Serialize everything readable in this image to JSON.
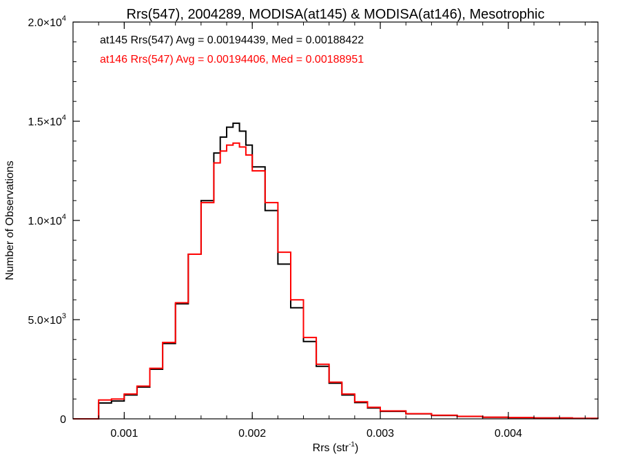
{
  "chart_data": {
    "type": "line",
    "title": "Rrs(547), 2004289, MODISA(at145) & MODISA(at146), Mesotrophic",
    "xlabel": "Rrs (str",
    "xlabel_sup": "-1",
    "xlabel_close": ")",
    "ylabel": "Number of Observations",
    "xlim": [
      0.0006,
      0.0047
    ],
    "ylim": [
      0,
      20000
    ],
    "step": true,
    "x_ticks": [
      {
        "value": 0.001,
        "label": "0.001"
      },
      {
        "value": 0.002,
        "label": "0.002"
      },
      {
        "value": 0.003,
        "label": "0.003"
      },
      {
        "value": 0.004,
        "label": "0.004"
      }
    ],
    "y_ticks": [
      {
        "value": 0,
        "label": "0",
        "sup": ""
      },
      {
        "value": 5000,
        "label": "5.0×10",
        "sup": "3"
      },
      {
        "value": 10000,
        "label": "1.0×10",
        "sup": "4"
      },
      {
        "value": 15000,
        "label": "1.5×10",
        "sup": "4"
      },
      {
        "value": 20000,
        "label": "2.0×10",
        "sup": "4"
      }
    ],
    "x_minor_step": 0.0002,
    "y_minor_step": 1000,
    "series": [
      {
        "name": "at145",
        "color": "#000000",
        "stats": "at145 Rrs(547) Avg = 0.00194439, Med = 0.00188422",
        "x": [
          0.0006,
          0.0007,
          0.00078,
          0.0008,
          0.0008,
          0.0009,
          0.001,
          0.0011,
          0.0012,
          0.0013,
          0.0014,
          0.0015,
          0.0016,
          0.0017,
          0.00175,
          0.0018,
          0.00185,
          0.0019,
          0.00195,
          0.002,
          0.0021,
          0.0022,
          0.0023,
          0.0024,
          0.0025,
          0.0026,
          0.0027,
          0.0028,
          0.0029,
          0.003,
          0.0032,
          0.0034,
          0.0036,
          0.0038,
          0.004,
          0.0042,
          0.0045,
          0.0047
        ],
        "y": [
          0,
          0,
          0,
          700,
          800,
          900,
          1200,
          1600,
          2500,
          3800,
          5800,
          8300,
          11000,
          13400,
          14200,
          14700,
          14900,
          14500,
          13800,
          12700,
          10500,
          7800,
          5600,
          3900,
          2650,
          1800,
          1200,
          820,
          550,
          380,
          250,
          170,
          120,
          80,
          60,
          40,
          20,
          10
        ]
      },
      {
        "name": "at146",
        "color": "#ff0000",
        "stats": "at146 Rrs(547) Avg = 0.00194406, Med = 0.00188951",
        "x": [
          0.0006,
          0.0007,
          0.00078,
          0.0008,
          0.0008,
          0.0009,
          0.001,
          0.0011,
          0.0012,
          0.0013,
          0.0014,
          0.0015,
          0.0016,
          0.0017,
          0.00175,
          0.0018,
          0.00185,
          0.0019,
          0.00195,
          0.002,
          0.0021,
          0.0022,
          0.0023,
          0.0024,
          0.0025,
          0.0026,
          0.0027,
          0.0028,
          0.0029,
          0.003,
          0.0032,
          0.0034,
          0.0036,
          0.0038,
          0.004,
          0.0042,
          0.0045,
          0.0047
        ],
        "y": [
          0,
          0,
          0,
          900,
          950,
          1000,
          1250,
          1650,
          2550,
          3850,
          5850,
          8300,
          10900,
          12900,
          13500,
          13800,
          13900,
          13700,
          13300,
          12500,
          10900,
          8400,
          6000,
          4100,
          2750,
          1850,
          1250,
          860,
          580,
          400,
          260,
          180,
          125,
          85,
          65,
          45,
          25,
          10
        ]
      }
    ]
  }
}
